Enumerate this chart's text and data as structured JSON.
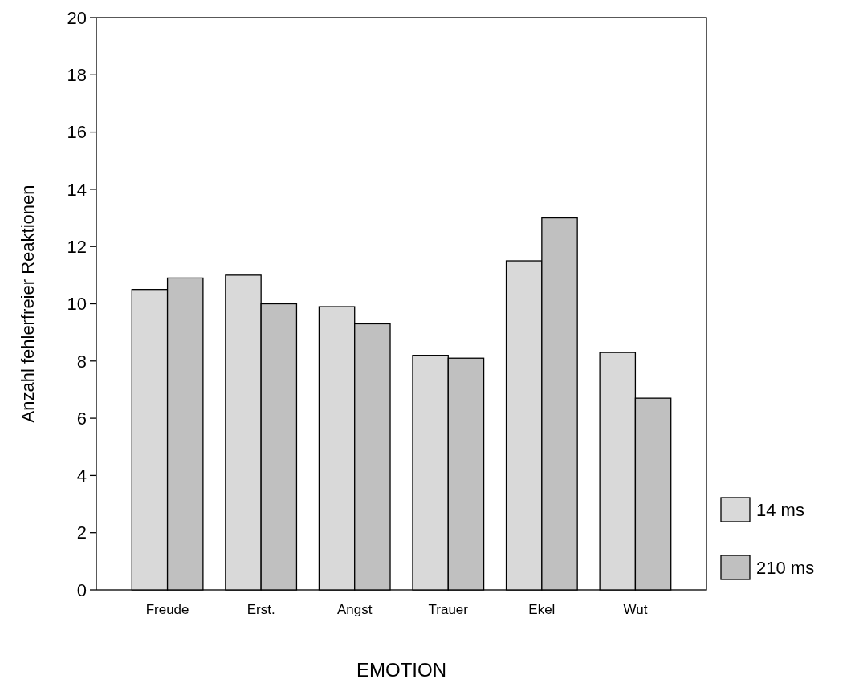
{
  "chart_data": {
    "type": "bar",
    "xlabel": "EMOTION",
    "ylabel": "Anzahl fehlerfreier Reaktionen",
    "categories": [
      "Freude",
      "Erst.",
      "Angst",
      "Trauer",
      "Ekel",
      "Wut"
    ],
    "series": [
      {
        "name": "14 ms",
        "color": "#d9d9d9",
        "values": [
          10.5,
          11.0,
          9.9,
          8.2,
          11.5,
          8.3
        ]
      },
      {
        "name": "210 ms",
        "color": "#c0c0c0",
        "values": [
          10.9,
          10.0,
          9.3,
          8.1,
          13.0,
          6.7
        ]
      }
    ],
    "ylim": [
      0,
      20
    ],
    "yticks": [
      0,
      2,
      4,
      6,
      8,
      10,
      12,
      14,
      16,
      18,
      20
    ],
    "grid": false,
    "legend": "bottom right"
  }
}
